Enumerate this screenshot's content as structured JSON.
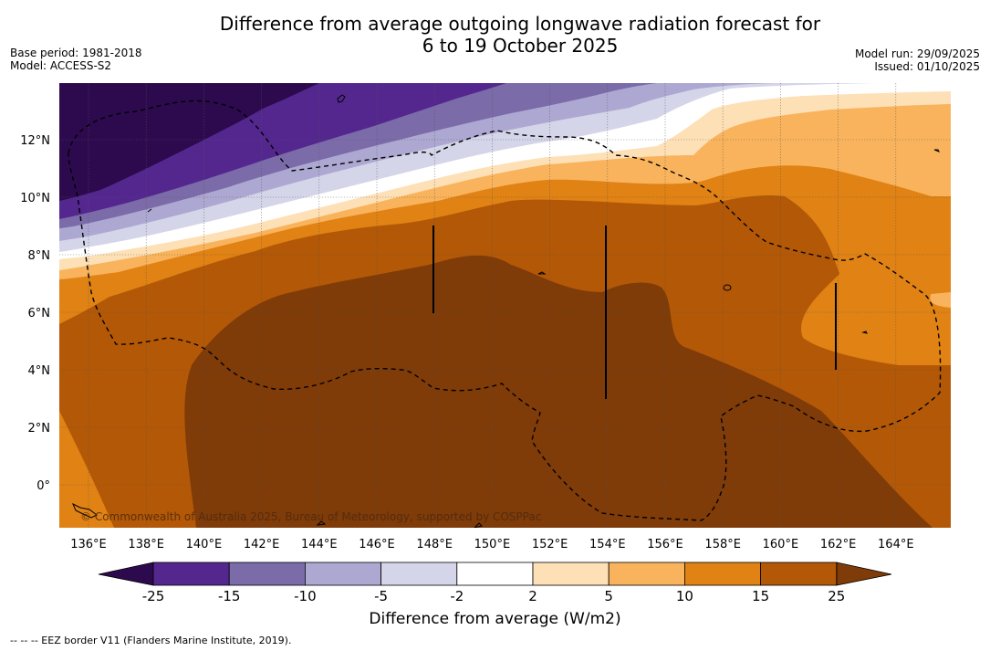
{
  "header": {
    "title_line1": "Difference from average outgoing longwave radiation forecast for",
    "title_line2": "6 to 19 October 2025",
    "base_period": "Base period: 1981-2018",
    "model": "Model: ACCESS-S2",
    "model_run": "Model run: 29/09/2025",
    "issued": "Issued: 01/10/2025"
  },
  "map": {
    "lon_labels": [
      "136°E",
      "138°E",
      "140°E",
      "142°E",
      "144°E",
      "146°E",
      "148°E",
      "150°E",
      "152°E",
      "154°E",
      "156°E",
      "158°E",
      "160°E",
      "162°E",
      "164°E"
    ],
    "lat_labels": [
      "12°N",
      "10°N",
      "8°N",
      "6°N",
      "4°N",
      "2°N",
      "0°"
    ],
    "copyright": "© Commonwealth of Australia 2025, Bureau of Meteorology, supported by COSPPac"
  },
  "colorbar": {
    "tick_labels": [
      "-25",
      "-15",
      "-10",
      "-5",
      "-2",
      "2",
      "5",
      "10",
      "15",
      "25"
    ],
    "label": "Difference from average (W/m2)",
    "colors": {
      "lt_minus25": "#2d0a4e",
      "m25_m15": "#54278f",
      "m15_m10": "#7b6ba8",
      "m10_m5": "#ada8d1",
      "m5_m2": "#d5d5e9",
      "m2_2": "#ffffff",
      "p2_5": "#fde0b6",
      "p5_10": "#f9b35c",
      "p10_15": "#e08214",
      "p15_25": "#b35806",
      "gt_25": "#7f3b08"
    }
  },
  "footnote": "--  --  -- EEZ border V11 (Flanders Marine Institute, 2019)."
}
